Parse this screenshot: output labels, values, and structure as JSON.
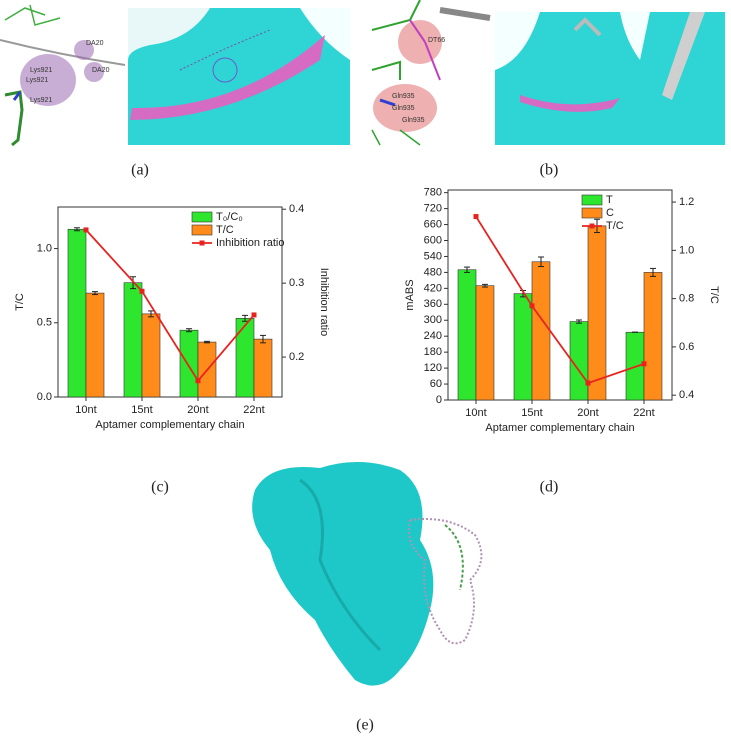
{
  "panel_labels": [
    "(a)",
    "(b)",
    "(c)",
    "(d)",
    "(e)"
  ],
  "images": [
    {
      "labels": [
        "DA20",
        "DA20",
        "Lys921",
        "Lys921",
        "Lys921"
      ]
    },
    {
      "labels": [
        "DT66",
        "Gln935",
        "Gln935",
        "Gln935"
      ]
    }
  ],
  "chart_data": [
    {
      "type": "bar",
      "categories": [
        "10nt",
        "15nt",
        "20nt",
        "22nt"
      ],
      "x_label": "Aptamer complementary chain",
      "y_label": "T/C",
      "y2_label": "Inhibition ratio",
      "ylim": [
        0,
        1.28
      ],
      "yticks": [
        {
          "value": 0,
          "label": "0.0"
        },
        0.5,
        {
          "value": 1,
          "label": "1.0"
        }
      ],
      "y2lim": [
        0.146,
        0.403
      ],
      "y2ticks": [
        0.2,
        0.3,
        0.4
      ],
      "legend": "upper right",
      "series": [
        {
          "name": "T₀/C₀",
          "color": "#2ee62e",
          "values": [
            1.13,
            0.77,
            0.45,
            0.53
          ],
          "errors": [
            0.01,
            0.04,
            0.01,
            0.02
          ]
        },
        {
          "name": "T/C",
          "color": "#ff8c1a",
          "values": [
            0.7,
            0.56,
            0.37,
            0.39
          ],
          "errors": [
            0.01,
            0.02,
            0.005,
            0.025
          ]
        },
        {
          "name": "Inhibition ratio",
          "color": "#e8231f",
          "axis": "y2",
          "values": [
            0.372,
            0.289,
            0.168,
            0.257
          ]
        }
      ]
    },
    {
      "type": "bar",
      "categories": [
        "10nt",
        "15nt",
        "20nt",
        "22nt"
      ],
      "x_label": "Aptamer complementary chain",
      "y_label": "mABS",
      "y2_label": "T/C",
      "ylim": [
        0,
        790
      ],
      "yticks": [
        0,
        60,
        120,
        180,
        240,
        300,
        360,
        420,
        480,
        540,
        600,
        660,
        720,
        780
      ],
      "y2lim": [
        0.38,
        1.25
      ],
      "y2ticks": [
        0.4,
        0.6,
        0.8,
        {
          "value": 1,
          "label": "1.0"
        },
        1.2
      ],
      "legend": "upper right",
      "series": [
        {
          "name": "T",
          "color": "#2ee62e",
          "values": [
            490,
            400,
            295,
            255
          ],
          "errors": [
            10,
            12,
            6,
            0
          ]
        },
        {
          "name": "C",
          "color": "#ff8c1a",
          "values": [
            430,
            520,
            655,
            480
          ],
          "errors": [
            5,
            18,
            25,
            15
          ]
        },
        {
          "name": "T/C",
          "color": "#e8231f",
          "axis": "y2",
          "values": [
            1.14,
            0.77,
            0.45,
            0.53
          ]
        }
      ]
    }
  ]
}
